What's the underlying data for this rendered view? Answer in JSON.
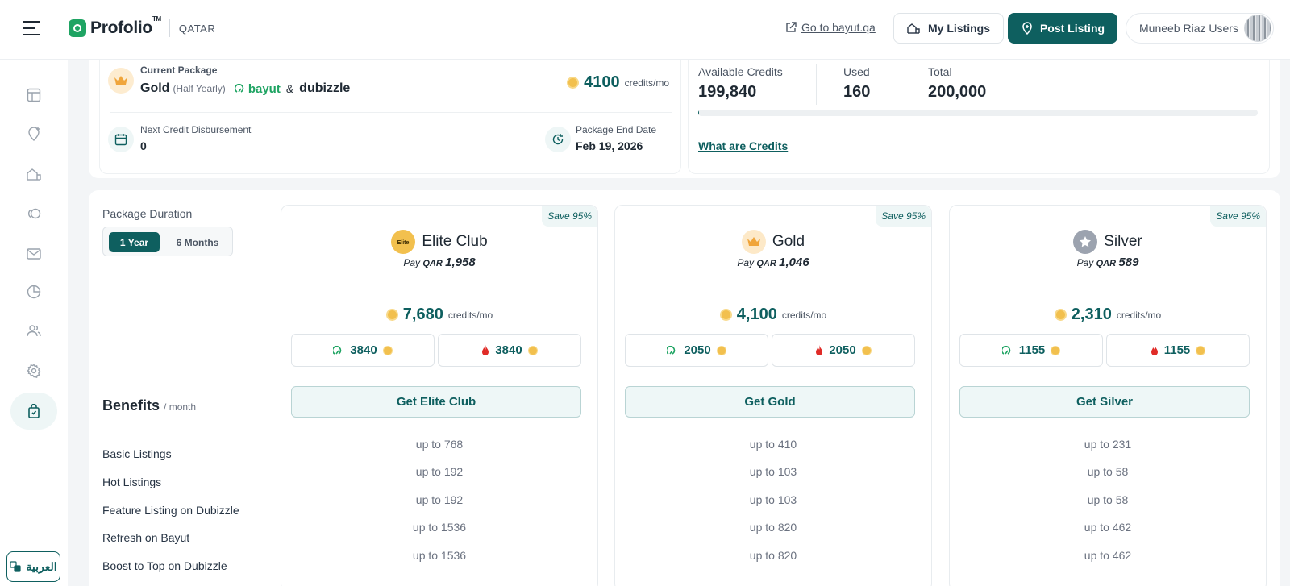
{
  "header": {
    "brand": "Profolio",
    "tm": "TM",
    "country": "QATAR",
    "goto_link": "Go to bayut.qa",
    "my_listings": "My Listings",
    "post_listing": "Post Listing",
    "user_name": "Muneeb Riaz Users"
  },
  "sidebar": {
    "icons": [
      "dashboard-icon",
      "location-add-icon",
      "listings-icon",
      "leads-icon",
      "mail-icon",
      "analytics-icon",
      "users-icon",
      "settings-icon",
      "packages-icon"
    ],
    "language": "العربية"
  },
  "current_package": {
    "label": "Current Package",
    "name": "Gold",
    "duration": "(Half Yearly)",
    "partner1": "bayut",
    "amp": "&",
    "partner2": "dubizzle",
    "credits": "4100",
    "credits_unit": "credits/mo",
    "next_disbursement_label": "Next Credit Disbursement",
    "next_disbursement_value": "0",
    "end_date_label": "Package End Date",
    "end_date_value": "Feb 19, 2026"
  },
  "credits": {
    "available_label": "Available Credits",
    "available_value": "199,840",
    "used_label": "Used",
    "used_value": "160",
    "total_label": "Total",
    "total_value": "200,000",
    "used_fraction": 0.0008,
    "what_are_credits": "What are Credits"
  },
  "plans_section": {
    "duration_label": "Package Duration",
    "option_year": "1 Year",
    "option_months": "6 Months",
    "benefits_title": "Benefits",
    "benefits_suffix": "/ month",
    "benefits": [
      "Basic Listings",
      "Hot Listings",
      "Feature Listing on Dubizzle",
      "Refresh on Bayut",
      "Boost to Top on Dubizzle"
    ]
  },
  "plans": [
    {
      "name": "Elite Club",
      "save": "Save 95%",
      "pay": "Pay",
      "currency": "QAR",
      "price": "1,958",
      "credits": "7,680",
      "credits_unit": "credits/mo",
      "bayut": "3840",
      "dubizzle": "3840",
      "cta": "Get Elite Club",
      "icon_color": "#f2c04e",
      "values": [
        "up to 768",
        "up to 192",
        "up to 192",
        "up to 1536",
        "up to 1536"
      ]
    },
    {
      "name": "Gold",
      "save": "Save 95%",
      "pay": "Pay",
      "currency": "QAR",
      "price": "1,046",
      "credits": "4,100",
      "credits_unit": "credits/mo",
      "bayut": "2050",
      "dubizzle": "2050",
      "cta": "Get Gold",
      "icon_color": "#fde9c8",
      "values": [
        "up to 410",
        "up to 103",
        "up to 103",
        "up to 820",
        "up to 820"
      ]
    },
    {
      "name": "Silver",
      "save": "Save 95%",
      "pay": "Pay",
      "currency": "QAR",
      "price": "589",
      "credits": "2,310",
      "credits_unit": "credits/mo",
      "bayut": "1155",
      "dubizzle": "1155",
      "cta": "Get Silver",
      "icon_color": "#9ca3af",
      "values": [
        "up to 231",
        "up to 58",
        "up to 58",
        "up to 462",
        "up to 462"
      ]
    }
  ]
}
